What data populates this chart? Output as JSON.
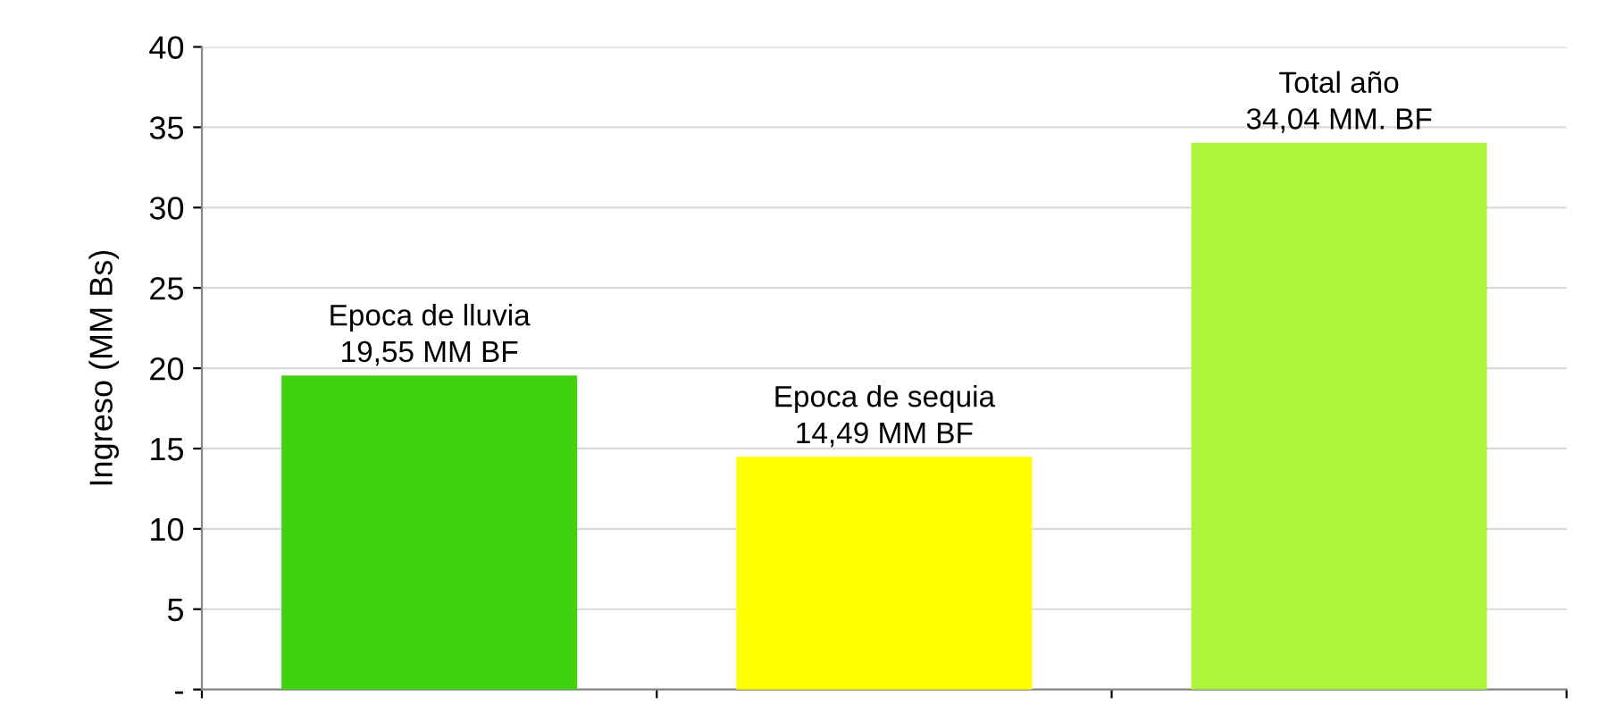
{
  "chart_data": {
    "type": "bar",
    "ylabel": "Ingreso (MM Bs)",
    "categories": [
      null,
      null,
      null
    ],
    "values": [
      19.55,
      14.49,
      34.04
    ],
    "colors": [
      "#3fd30f",
      "#ffff00",
      "#adf53a"
    ],
    "value_labels": [
      "Epoca de lluvia\n19,55 MM BF",
      "Epoca de sequia\n14,49 MM BF",
      "Total año\n34,04 MM. BF"
    ],
    "ylim": [
      0,
      40
    ],
    "yticks": [
      {
        "value": 0,
        "label": "-"
      },
      5,
      10,
      15,
      20,
      25,
      30,
      35,
      40
    ],
    "grid": "y"
  }
}
